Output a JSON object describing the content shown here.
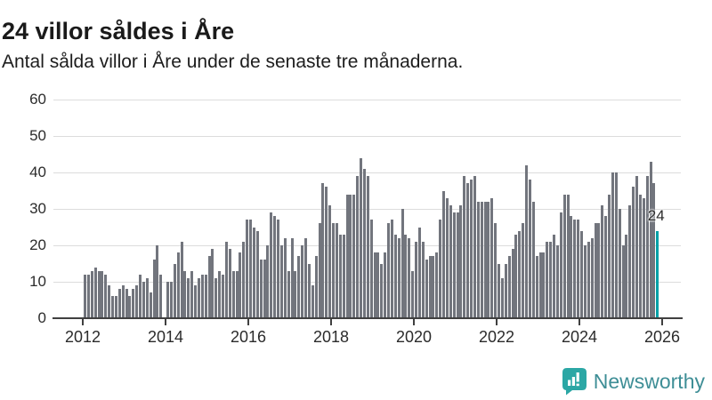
{
  "header": {
    "title": "24 villor såldes i Åre",
    "subtitle": "Antal sålda villor i Åre under de senaste tre månaderna."
  },
  "brand": {
    "name": "Newsworthy",
    "icon": "newsworthy-speech-bubble-bar-chart-icon",
    "icon_color": "#2BA7A5",
    "text_color": "#3E8E96"
  },
  "chart_data": {
    "type": "bar",
    "title": "24 villor såldes i Åre",
    "subtitle": "Antal sålda villor i Åre under de senaste tre månaderna.",
    "xlabel": "",
    "ylabel": "",
    "ylim": [
      0,
      60
    ],
    "yticks": [
      0,
      10,
      20,
      30,
      40,
      50,
      60
    ],
    "xticks": [
      2012,
      2014,
      2016,
      2018,
      2020,
      2022,
      2024,
      2026
    ],
    "grid": "horizontal",
    "legend": "none",
    "bar_color": "#72757D",
    "x_unit": "month",
    "series": [
      {
        "year": 2012,
        "values": [
          12,
          12,
          13,
          14,
          13,
          13,
          12,
          9,
          6,
          6,
          8,
          9
        ]
      },
      {
        "year": 2013,
        "values": [
          8,
          6,
          8,
          9,
          12,
          10,
          11,
          7,
          16,
          20,
          12,
          0
        ]
      },
      {
        "year": 2014,
        "values": [
          10,
          10,
          15,
          18,
          21,
          13,
          11,
          13,
          9,
          11,
          12,
          12
        ]
      },
      {
        "year": 2015,
        "values": [
          17,
          19,
          11,
          13,
          12,
          21,
          19,
          13,
          13,
          18,
          21,
          27
        ]
      },
      {
        "year": 2016,
        "values": [
          27,
          25,
          24,
          16,
          16,
          20,
          29,
          28,
          27,
          20,
          22,
          13
        ]
      },
      {
        "year": 2017,
        "values": [
          22,
          13,
          17,
          20,
          22,
          15,
          9,
          17,
          26,
          37,
          36,
          31
        ]
      },
      {
        "year": 2018,
        "values": [
          26,
          26,
          23,
          23,
          34,
          34,
          34,
          39,
          44,
          41,
          39,
          27
        ]
      },
      {
        "year": 2019,
        "values": [
          18,
          18,
          15,
          18,
          26,
          27,
          23,
          22,
          30,
          23,
          22,
          13
        ]
      },
      {
        "year": 2020,
        "values": [
          21,
          25,
          21,
          16,
          17,
          17,
          18,
          27,
          35,
          33,
          31,
          29
        ]
      },
      {
        "year": 2021,
        "values": [
          29,
          31,
          39,
          37,
          38,
          39,
          32,
          32,
          32,
          32,
          33,
          26
        ]
      },
      {
        "year": 2022,
        "values": [
          15,
          11,
          15,
          17,
          19,
          23,
          24,
          26,
          42,
          38,
          32,
          17
        ]
      },
      {
        "year": 2023,
        "values": [
          18,
          18,
          21,
          21,
          23,
          20,
          29,
          34,
          34,
          28,
          27,
          27
        ]
      },
      {
        "year": 2024,
        "values": [
          24,
          20,
          21,
          22,
          26,
          26,
          31,
          28,
          34,
          40,
          40,
          30
        ]
      },
      {
        "year": 2025,
        "values": [
          20,
          23,
          31,
          36,
          39,
          34,
          33,
          39,
          43,
          37,
          24
        ]
      }
    ],
    "highlight": {
      "position": "last-bar",
      "value": 24,
      "label": "24",
      "color": "#00A1A7"
    }
  }
}
